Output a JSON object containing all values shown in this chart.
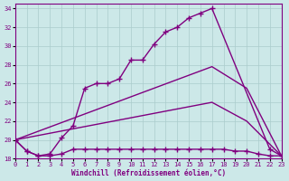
{
  "xlabel": "Windchill (Refroidissement éolien,°C)",
  "background_color": "#cce8e8",
  "line_color": "#800080",
  "grid_color": "#aacccc",
  "xlim": [
    0,
    23
  ],
  "ylim": [
    18,
    34.5
  ],
  "yticks": [
    18,
    20,
    22,
    24,
    26,
    28,
    30,
    32,
    34
  ],
  "xticks": [
    0,
    1,
    2,
    3,
    4,
    5,
    6,
    7,
    8,
    9,
    10,
    11,
    12,
    13,
    14,
    15,
    16,
    17,
    18,
    19,
    20,
    21,
    22,
    23
  ],
  "line1_x": [
    0,
    1,
    2,
    3,
    4,
    5,
    6,
    7,
    8,
    9,
    10,
    11,
    12,
    13,
    14,
    15,
    16,
    17,
    22,
    23
  ],
  "line1_y": [
    20.0,
    18.8,
    18.3,
    18.5,
    20.2,
    21.5,
    25.5,
    26.0,
    26.0,
    26.5,
    28.5,
    28.5,
    30.2,
    31.5,
    32.0,
    33.0,
    33.5,
    34.0,
    19.0,
    18.3
  ],
  "line2_x": [
    0,
    1,
    2,
    3,
    4,
    5,
    6,
    7,
    8,
    9,
    10,
    11,
    12,
    13,
    14,
    15,
    16,
    17,
    18,
    19,
    20,
    21,
    22,
    23
  ],
  "line2_y": [
    20.0,
    18.8,
    18.3,
    18.3,
    18.5,
    19.0,
    19.0,
    19.0,
    19.0,
    19.0,
    19.0,
    19.0,
    19.0,
    19.0,
    19.0,
    19.0,
    19.0,
    19.0,
    19.0,
    18.8,
    18.8,
    18.5,
    18.3,
    18.3
  ],
  "line3_x": [
    0,
    17,
    20,
    23
  ],
  "line3_y": [
    20.0,
    27.8,
    25.5,
    18.3
  ],
  "line4_x": [
    0,
    17,
    20,
    23
  ],
  "line4_y": [
    20.0,
    24.0,
    22.0,
    18.3
  ]
}
